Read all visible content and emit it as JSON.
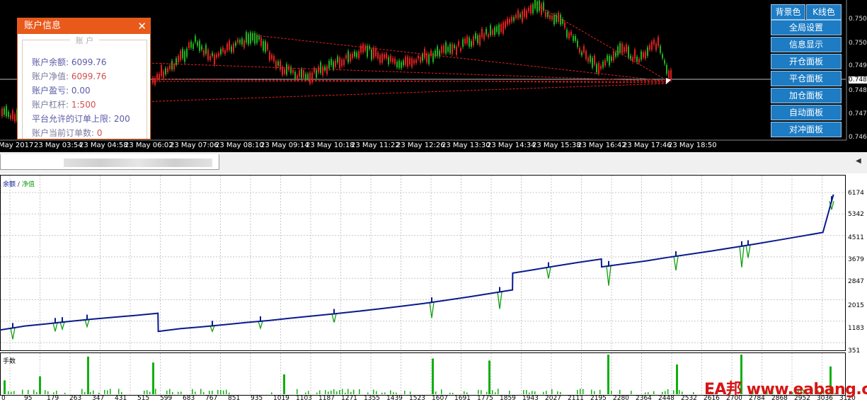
{
  "price_chart": {
    "price_labels": [
      "0.7509",
      "0.7501",
      "0.7492",
      "0.7487",
      "0.7484",
      "0.7475",
      "0.7467"
    ],
    "current_price": "0.7487",
    "time_labels": [
      "May 2017",
      "23 May 03:54",
      "23 May 04:58",
      "23 May 06:02",
      "23 May 07:06",
      "23 May 08:10",
      "23 May 09:14",
      "23 May 10:18",
      "23 May 11:22",
      "23 May 12:26",
      "23 May 13:30",
      "23 May 14:34",
      "23 May 15:38",
      "23 May 16:42",
      "23 May 17:46",
      "23 May 18:50"
    ]
  },
  "info_panel": {
    "title": "账户信息",
    "close_label": "✕",
    "section_label": "账  户",
    "rows": [
      {
        "label": "账户余额:",
        "value": "6099.76"
      },
      {
        "label": "账户净值:",
        "value": "6099.76"
      },
      {
        "label": "账户盈亏:",
        "value": "0.00"
      },
      {
        "label": "账户杠杆:",
        "value": "1:500"
      },
      {
        "label": "平台允许的订单上限:",
        "value": "200"
      },
      {
        "label": "账户当前订单数:",
        "value": "0"
      }
    ]
  },
  "buttons": {
    "bg_color": "背景色",
    "candle_color": "K线色",
    "global_settings": "全局设置",
    "info_display": "信息显示",
    "open_panel": "开仓面板",
    "close_panel": "平仓面板",
    "add_panel": "加仓面板",
    "auto_panel": "自动面板",
    "hedge_panel": "对冲面板"
  },
  "balance_chart": {
    "legend_balance": "余额",
    "legend_sep": "/",
    "legend_equity": "净值",
    "volume_label": "手数",
    "y_labels": [
      "6174",
      "5342",
      "4511",
      "3679",
      "2847",
      "2015",
      "1183",
      "351"
    ],
    "x_labels": [
      "0",
      "95",
      "179",
      "263",
      "347",
      "431",
      "515",
      "599",
      "683",
      "767",
      "851",
      "935",
      "1019",
      "1103",
      "1187",
      "1271",
      "1355",
      "1439",
      "1523",
      "1607",
      "1691",
      "1775",
      "1859",
      "1943",
      "2027",
      "2111",
      "2195",
      "2280",
      "2364",
      "2448",
      "2532",
      "2616",
      "2700",
      "2784",
      "2868",
      "2952",
      "3036",
      "3120"
    ],
    "colors": {
      "balance": "#0a1a8c",
      "equity": "#10a010",
      "volume": "#10b010"
    }
  },
  "chart_data": [
    {
      "type": "line",
      "title": "",
      "xlabel": "",
      "ylabel": "",
      "ylim": [
        351,
        6174
      ],
      "xlim": [
        0,
        3120
      ],
      "series": [
        {
          "name": "余额",
          "x": [
            0,
            95,
            179,
            263,
            347,
            431,
            515,
            599,
            600,
            683,
            767,
            851,
            935,
            1019,
            1103,
            1187,
            1271,
            1355,
            1439,
            1523,
            1607,
            1691,
            1775,
            1859,
            1943,
            1944,
            2027,
            2111,
            2195,
            2280,
            2281,
            2364,
            2448,
            2532,
            2616,
            2700,
            2784,
            2868,
            2952,
            3036,
            3120,
            3160
          ],
          "y": [
            1100,
            1250,
            1330,
            1420,
            1500,
            1570,
            1640,
            1720,
            1050,
            1150,
            1220,
            1300,
            1380,
            1450,
            1540,
            1620,
            1700,
            1790,
            1880,
            1980,
            2080,
            2200,
            2320,
            2450,
            2580,
            3200,
            3330,
            3470,
            3600,
            3720,
            3430,
            3540,
            3650,
            3780,
            3900,
            4020,
            4150,
            4280,
            4420,
            4560,
            4700,
            6100
          ]
        }
      ]
    },
    {
      "type": "bar",
      "title": "",
      "xlabel": "",
      "ylabel": "",
      "series": [
        {
          "name": "手数",
          "x": [
            5,
            55,
            123,
            215,
            400,
            620,
            700,
            860,
            950,
            1046,
            1170
          ],
          "values": [
            0.35,
            0.45,
            0.95,
            0.8,
            0.5,
            0.9,
            0.85,
            1.0,
            0.75,
            1.0,
            0.7
          ]
        }
      ]
    }
  ]
}
